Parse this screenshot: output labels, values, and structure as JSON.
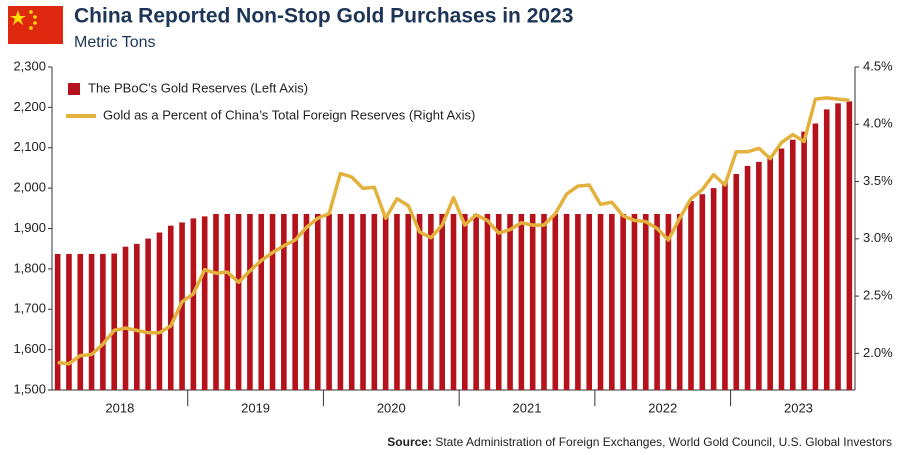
{
  "chart_data": {
    "type": "bar_line",
    "title": "China Reported Non-Stop Gold Purchases in 2023",
    "subtitle": "Metric Tons",
    "source_label": "Source:",
    "source": "State Administration of Foreign Exchanges, World Gold Council, U.S. Global Investors",
    "categories": [
      null,
      null,
      null,
      null,
      null,
      null,
      "2018",
      null,
      null,
      null,
      null,
      null,
      null,
      null,
      null,
      null,
      null,
      null,
      "2019",
      null,
      null,
      null,
      null,
      null,
      null,
      null,
      null,
      null,
      null,
      null,
      "2020",
      null,
      null,
      null,
      null,
      null,
      null,
      null,
      null,
      null,
      null,
      null,
      "2021",
      null,
      null,
      null,
      null,
      null,
      null,
      null,
      null,
      null,
      null,
      null,
      "2022",
      null,
      null,
      null,
      null,
      null,
      null,
      null,
      null,
      null,
      null,
      null,
      "2023",
      null,
      null,
      null,
      null
    ],
    "series": [
      {
        "name": "The PBoC’s Gold Reserves (Left Axis)",
        "color": "#b5121b",
        "type": "bar",
        "values": [
          1837,
          1837,
          1837,
          1837,
          1837,
          1838,
          1855,
          1862,
          1875,
          1890,
          1907,
          1915,
          1925,
          1930,
          1936,
          1936,
          1936,
          1936,
          1936,
          1936,
          1936,
          1936,
          1936,
          1936,
          1936,
          1936,
          1936,
          1936,
          1936,
          1936,
          1936,
          1936,
          1936,
          1936,
          1936,
          1936,
          1936,
          1936,
          1936,
          1936,
          1936,
          1936,
          1936,
          1936,
          1936,
          1936,
          1936,
          1936,
          1936,
          1936,
          1936,
          1936,
          1936,
          1936,
          1936,
          1936,
          1968,
          1985,
          2000,
          2015,
          2035,
          2055,
          2065,
          2078,
          2098,
          2120,
          2140,
          2160,
          2195,
          2210,
          2215
        ]
      },
      {
        "name": "Gold as a Percent of China’s Total Foreign Reserves (Right Axis)",
        "color": "#e3b23c",
        "type": "line",
        "axis": "y2",
        "values": [
          1.92,
          1.91,
          1.98,
          1.99,
          2.08,
          2.2,
          2.22,
          2.2,
          2.18,
          2.18,
          2.24,
          2.45,
          2.52,
          2.73,
          2.7,
          2.71,
          2.62,
          2.72,
          2.81,
          2.88,
          2.94,
          2.99,
          3.1,
          3.18,
          3.22,
          3.57,
          3.54,
          3.44,
          3.45,
          3.18,
          3.35,
          3.29,
          3.06,
          3.01,
          3.12,
          3.36,
          3.12,
          3.21,
          3.16,
          3.05,
          3.08,
          3.14,
          3.12,
          3.12,
          3.22,
          3.39,
          3.46,
          3.47,
          3.3,
          3.32,
          3.2,
          3.16,
          3.15,
          3.09,
          2.99,
          3.18,
          3.35,
          3.43,
          3.56,
          3.47,
          3.76,
          3.76,
          3.79,
          3.7,
          3.84,
          3.91,
          3.85,
          4.22,
          4.23,
          4.22,
          4.21
        ]
      }
    ],
    "ylim": [
      1500,
      2300
    ],
    "yticks": [
      {
        "value": 1500,
        "label": "1,500"
      },
      {
        "value": 1600,
        "label": "1,600"
      },
      {
        "value": 1700,
        "label": "1,700"
      },
      {
        "value": 1800,
        "label": "1,800"
      },
      {
        "value": 1900,
        "label": "1,900"
      },
      {
        "value": 2000,
        "label": "2,000"
      },
      {
        "value": 2100,
        "label": "2,100"
      },
      {
        "value": 2200,
        "label": "2,200"
      },
      {
        "value": 2300,
        "label": "2,300"
      }
    ],
    "y2lim": [
      1.68,
      4.5
    ],
    "y2ticks": [
      {
        "value": 2.0,
        "label": "2.0%"
      },
      {
        "value": 2.5,
        "label": "2.5%"
      },
      {
        "value": 3.0,
        "label": "3.0%"
      },
      {
        "value": 3.5,
        "label": "3.5%"
      },
      {
        "value": 4.0,
        "label": "4.0%"
      },
      {
        "value": 4.5,
        "label": "4.5%"
      }
    ],
    "grid": false
  }
}
